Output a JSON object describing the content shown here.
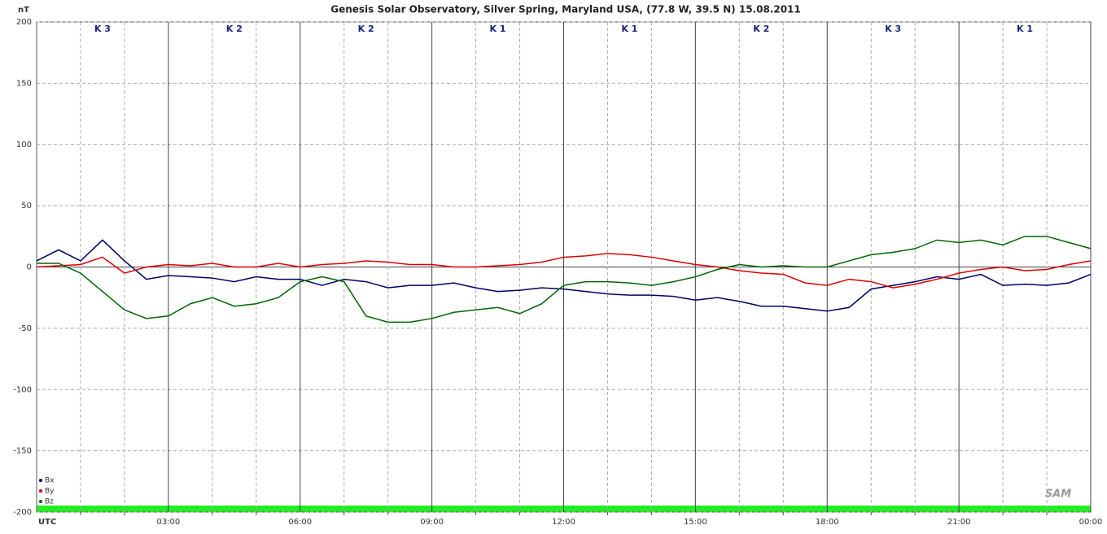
{
  "chart_data": {
    "type": "line",
    "title": "Genesis Solar Observatory, Silver Spring, Maryland USA, (77.8 W, 39.5 N)  15.08.2011",
    "y_label": "nT",
    "x_label": "UTC",
    "logo": "SAM",
    "k_indices": [
      "K 3",
      "K 2",
      "K 2",
      "K 1",
      "K 1",
      "K 2",
      "K 3",
      "K 1"
    ],
    "x": [
      0,
      0.5,
      1,
      1.5,
      2,
      2.5,
      3,
      3.5,
      4,
      4.5,
      5,
      5.5,
      6,
      6.5,
      7,
      7.5,
      8,
      8.5,
      9,
      9.5,
      10,
      10.5,
      11,
      11.5,
      12,
      12.5,
      13,
      13.5,
      14,
      14.5,
      15,
      15.5,
      16,
      16.5,
      17,
      17.5,
      18,
      18.5,
      19,
      19.5,
      20,
      20.5,
      21,
      21.5,
      22,
      22.5,
      23,
      23.5,
      24
    ],
    "series": [
      {
        "name": "Bx",
        "color": "#000066",
        "values": [
          5,
          14,
          5,
          22,
          5,
          -10,
          -7,
          -8,
          -9,
          -12,
          -8,
          -10,
          -10,
          -15,
          -10,
          -12,
          -17,
          -15,
          -15,
          -13,
          -17,
          -20,
          -19,
          -17,
          -18,
          -20,
          -22,
          -23,
          -23,
          -24,
          -27,
          -25,
          -28,
          -32,
          -32,
          -34,
          -36,
          -33,
          -18,
          -15,
          -12,
          -8,
          -10,
          -6,
          -15,
          -14,
          -15,
          -13,
          -6
        ]
      },
      {
        "name": "By",
        "color": "#e00000",
        "values": [
          0,
          1,
          2,
          8,
          -5,
          0,
          2,
          1,
          3,
          0,
          0,
          3,
          0,
          2,
          3,
          5,
          4,
          2,
          2,
          0,
          0,
          1,
          2,
          4,
          8,
          9,
          11,
          10,
          8,
          5,
          2,
          0,
          -3,
          -5,
          -6,
          -13,
          -15,
          -10,
          -12,
          -17,
          -14,
          -10,
          -5,
          -2,
          0,
          -3,
          -2,
          2,
          5
        ]
      },
      {
        "name": "Bz",
        "color": "#006600",
        "values": [
          3,
          3,
          -5,
          -20,
          -35,
          -42,
          -40,
          -30,
          -25,
          -32,
          -30,
          -25,
          -12,
          -8,
          -12,
          -40,
          -45,
          -45,
          -42,
          -37,
          -35,
          -33,
          -38,
          -30,
          -15,
          -12,
          -12,
          -13,
          -15,
          -12,
          -8,
          -2,
          2,
          0,
          1,
          0,
          0,
          5,
          10,
          12,
          15,
          22,
          20,
          22,
          18,
          25,
          25,
          20,
          15
        ]
      }
    ],
    "xlim": [
      0,
      24
    ],
    "xticks": [
      {
        "value": 3,
        "label": "03:00"
      },
      {
        "value": 6,
        "label": "06:00"
      },
      {
        "value": 9,
        "label": "09:00"
      },
      {
        "value": 12,
        "label": "12:00"
      },
      {
        "value": 15,
        "label": "15:00"
      },
      {
        "value": 18,
        "label": "18:00"
      },
      {
        "value": 21,
        "label": "21:00"
      },
      {
        "value": 24,
        "label": "00:00"
      }
    ],
    "xticks_minor": [
      1,
      2,
      4,
      5,
      7,
      8,
      10,
      11,
      13,
      14,
      16,
      17,
      19,
      20,
      22,
      23
    ],
    "ylim": [
      -200,
      200
    ],
    "yticks": [
      -200,
      -150,
      -100,
      -50,
      0,
      50,
      100,
      150,
      200
    ],
    "grid": true
  }
}
